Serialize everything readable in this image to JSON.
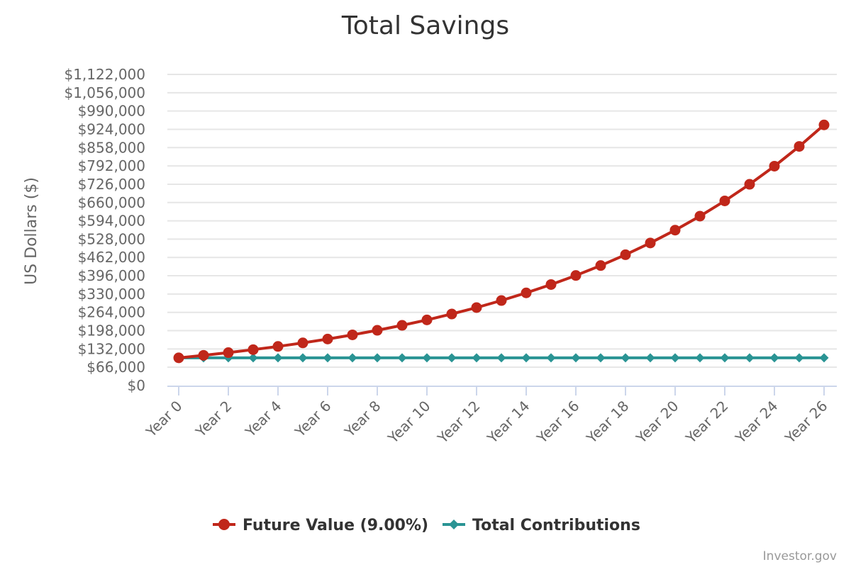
{
  "chart_data": {
    "type": "line",
    "title": "Total Savings",
    "ylabel": "US Dollars ($)",
    "xlabel": "",
    "ylim": [
      0,
      1122000
    ],
    "y_tick_step": 66000,
    "y_tick_labels": [
      "$0",
      "$66,000",
      "$132,000",
      "$198,000",
      "$264,000",
      "$330,000",
      "$396,000",
      "$462,000",
      "$528,000",
      "$594,000",
      "$660,000",
      "$726,000",
      "$792,000",
      "$858,000",
      "$924,000",
      "$990,000",
      "$1,056,000",
      "$1,122,000"
    ],
    "categories": [
      "Year 0",
      "Year 1",
      "Year 2",
      "Year 3",
      "Year 4",
      "Year 5",
      "Year 6",
      "Year 7",
      "Year 8",
      "Year 9",
      "Year 10",
      "Year 11",
      "Year 12",
      "Year 13",
      "Year 14",
      "Year 15",
      "Year 16",
      "Year 17",
      "Year 18",
      "Year 19",
      "Year 20",
      "Year 21",
      "Year 22",
      "Year 23",
      "Year 24",
      "Year 25",
      "Year 26"
    ],
    "x_tick_labels": [
      "Year 0",
      "Year 2",
      "Year 4",
      "Year 6",
      "Year 8",
      "Year 10",
      "Year 12",
      "Year 14",
      "Year 16",
      "Year 18",
      "Year 20",
      "Year 22",
      "Year 24",
      "Year 26"
    ],
    "grid": true,
    "legend_position": "bottom-center",
    "series": [
      {
        "name": "Future Value (9.00%)",
        "color": "#c0271a",
        "marker": "circle",
        "values": [
          100000,
          109000,
          118810,
          129503,
          141158,
          153862,
          167710,
          182804,
          199256,
          217189,
          236736,
          258043,
          281266,
          306580,
          334173,
          364248,
          397031,
          432763,
          471712,
          514166,
          560441,
          610881,
          665860,
          725787,
          791108,
          862308,
          939916
        ]
      },
      {
        "name": "Total Contributions",
        "color": "#2a9494",
        "marker": "diamond",
        "values": [
          100000,
          100000,
          100000,
          100000,
          100000,
          100000,
          100000,
          100000,
          100000,
          100000,
          100000,
          100000,
          100000,
          100000,
          100000,
          100000,
          100000,
          100000,
          100000,
          100000,
          100000,
          100000,
          100000,
          100000,
          100000,
          100000,
          100000
        ]
      }
    ]
  },
  "credit": "Investor.gov"
}
